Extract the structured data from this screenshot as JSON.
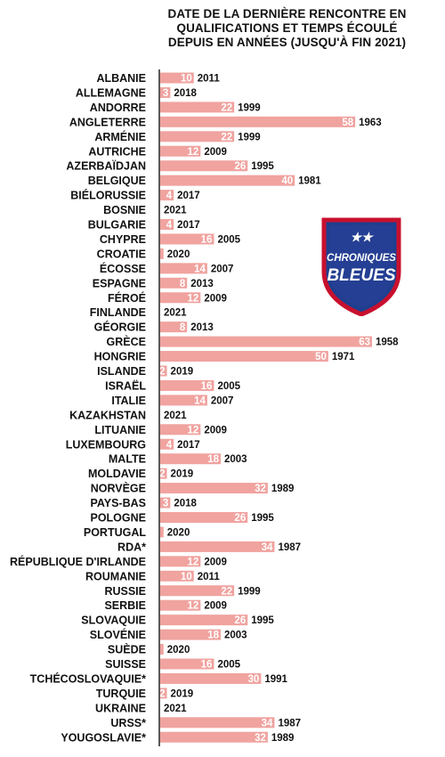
{
  "title_lines": [
    "DATE DE LA DERNIÈRE RENCONTRE EN",
    "QUALIFICATIONS ET TEMPS ÉCOULÉ",
    "DEPUIS EN ANNÉES (JUSQU'À FIN 2021)"
  ],
  "logo": {
    "line1": "CHRONIQUES",
    "line2": "BLEUES",
    "stars": "★★"
  },
  "colors": {
    "bar": "#f0a39f",
    "axis": "#222222",
    "logo_blue": "#1f3f8f",
    "logo_red": "#c8102e"
  },
  "chart_data": {
    "type": "bar",
    "orientation": "horizontal",
    "xlim": [
      0,
      63
    ],
    "categories": [
      {
        "name": "ALBANIE",
        "value": 10,
        "year": "2011"
      },
      {
        "name": "ALLEMAGNE",
        "value": 3,
        "year": "2018"
      },
      {
        "name": "ANDORRE",
        "value": 22,
        "year": "1999"
      },
      {
        "name": "ANGLETERRE",
        "value": 58,
        "year": "1963"
      },
      {
        "name": "ARMÉNIE",
        "value": 22,
        "year": "1999"
      },
      {
        "name": "AUTRICHE",
        "value": 12,
        "year": "2009"
      },
      {
        "name": "AZERBAÏDJAN",
        "value": 26,
        "year": "1995"
      },
      {
        "name": "BELGIQUE",
        "value": 40,
        "year": "1981"
      },
      {
        "name": "BIÉLORUSSIE",
        "value": 4,
        "year": "2017"
      },
      {
        "name": "BOSNIE",
        "value": 0,
        "year": "2021"
      },
      {
        "name": "BULGARIE",
        "value": 4,
        "year": "2017"
      },
      {
        "name": "CHYPRE",
        "value": 16,
        "year": "2005"
      },
      {
        "name": "CROATIE",
        "value": 1,
        "year": "2020"
      },
      {
        "name": "ÉCOSSE",
        "value": 14,
        "year": "2007"
      },
      {
        "name": "ESPAGNE",
        "value": 8,
        "year": "2013"
      },
      {
        "name": "FÉROÉ",
        "value": 12,
        "year": "2009"
      },
      {
        "name": "FINLANDE",
        "value": 0,
        "year": "2021"
      },
      {
        "name": "GÉORGIE",
        "value": 8,
        "year": "2013"
      },
      {
        "name": "GRÈCE",
        "value": 63,
        "year": "1958"
      },
      {
        "name": "HONGRIE",
        "value": 50,
        "year": "1971"
      },
      {
        "name": "ISLANDE",
        "value": 2,
        "year": "2019"
      },
      {
        "name": "ISRAËL",
        "value": 16,
        "year": "2005"
      },
      {
        "name": "ITALIE",
        "value": 14,
        "year": "2007"
      },
      {
        "name": "KAZAKHSTAN",
        "value": 0,
        "year": "2021"
      },
      {
        "name": "LITUANIE",
        "value": 12,
        "year": "2009"
      },
      {
        "name": "LUXEMBOURG",
        "value": 4,
        "year": "2017"
      },
      {
        "name": "MALTE",
        "value": 18,
        "year": "2003"
      },
      {
        "name": "MOLDAVIE",
        "value": 2,
        "year": "2019"
      },
      {
        "name": "NORVÈGE",
        "value": 32,
        "year": "1989"
      },
      {
        "name": "PAYS-BAS",
        "value": 3,
        "year": "2018"
      },
      {
        "name": "POLOGNE",
        "value": 26,
        "year": "1995"
      },
      {
        "name": "PORTUGAL",
        "value": 1,
        "year": "2020"
      },
      {
        "name": "RDA*",
        "value": 34,
        "year": "1987"
      },
      {
        "name": "RÉPUBLIQUE D'IRLANDE",
        "value": 12,
        "year": "2009"
      },
      {
        "name": "ROUMANIE",
        "value": 10,
        "year": "2011"
      },
      {
        "name": "RUSSIE",
        "value": 22,
        "year": "1999"
      },
      {
        "name": "SERBIE",
        "value": 12,
        "year": "2009"
      },
      {
        "name": "SLOVAQUIE",
        "value": 26,
        "year": "1995"
      },
      {
        "name": "SLOVÉNIE",
        "value": 18,
        "year": "2003"
      },
      {
        "name": "SUÈDE",
        "value": 1,
        "year": "2020"
      },
      {
        "name": "SUISSE",
        "value": 16,
        "year": "2005"
      },
      {
        "name": "TCHÉCOSLOVAQUIE*",
        "value": 30,
        "year": "1991"
      },
      {
        "name": "TURQUIE",
        "value": 2,
        "year": "2019"
      },
      {
        "name": "UKRAINE",
        "value": 0,
        "year": "2021"
      },
      {
        "name": "URSS*",
        "value": 34,
        "year": "1987"
      },
      {
        "name": "YOUGOSLAVIE*",
        "value": 32,
        "year": "1989"
      }
    ]
  }
}
